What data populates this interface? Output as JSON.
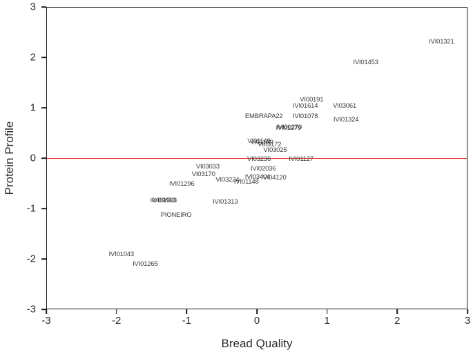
{
  "figure": {
    "background": "#ffffff",
    "frame_color": "#1a1a1a",
    "text_color": "#2b2b2b"
  },
  "chart_data": {
    "type": "scatter",
    "title": "",
    "xlabel": "Bread Quality",
    "ylabel": "Protein Profile",
    "xlim": [
      -3,
      3
    ],
    "ylim": [
      -3,
      3
    ],
    "xticks": [
      "-3",
      "-2",
      "-1",
      "0",
      "1",
      "2",
      "3"
    ],
    "yticks": [
      "3",
      "2",
      "1",
      "0",
      "-1",
      "-2",
      "-3"
    ],
    "grid": false,
    "legend": "none",
    "marker_style": "text-label",
    "point_label_color": "#3a3a3a",
    "reference_line": {
      "axis": "y",
      "value": 0,
      "color": "#e8392b"
    },
    "points": [
      {
        "label": "IVI01321",
        "x": 2.62,
        "y": 2.32
      },
      {
        "label": "IVI01453",
        "x": 1.54,
        "y": 1.9
      },
      {
        "label": "VI00191",
        "x": 0.77,
        "y": 1.17
      },
      {
        "label": "IVI01614",
        "x": 0.68,
        "y": 1.04
      },
      {
        "label": "VI03061",
        "x": 1.24,
        "y": 1.04
      },
      {
        "label": "EMBRAPA22",
        "x": 0.09,
        "y": 0.84
      },
      {
        "label": "IVI01078",
        "x": 0.68,
        "y": 0.84
      },
      {
        "label": "IVI01324",
        "x": 1.26,
        "y": 0.77
      },
      {
        "label": "IVI00270",
        "x": 0.45,
        "y": 0.61
      },
      {
        "label": "IVI01279",
        "x": 0.44,
        "y": 0.6
      },
      {
        "label": "VI01149",
        "x": 0.02,
        "y": 0.34
      },
      {
        "label": "VI01169",
        "x": 0.06,
        "y": 0.32
      },
      {
        "label": "VI03172",
        "x": 0.17,
        "y": 0.28
      },
      {
        "label": "VI03025",
        "x": 0.25,
        "y": 0.17
      },
      {
        "label": "VI03236",
        "x": 0.02,
        "y": -0.01
      },
      {
        "label": "IVI01127",
        "x": 0.62,
        "y": -0.01
      },
      {
        "label": "VI03033",
        "x": -0.71,
        "y": -0.17
      },
      {
        "label": "IVI02036",
        "x": 0.08,
        "y": -0.21
      },
      {
        "label": "VI03170",
        "x": -0.77,
        "y": -0.31
      },
      {
        "label": "IVI03404",
        "x": 0.0,
        "y": -0.37
      },
      {
        "label": "IVI04120",
        "x": 0.23,
        "y": -0.38
      },
      {
        "label": "VI03224",
        "x": -0.43,
        "y": -0.42
      },
      {
        "label": "IVI01148",
        "x": -0.16,
        "y": -0.47
      },
      {
        "label": "IVI01296",
        "x": -1.08,
        "y": -0.51
      },
      {
        "label": "IVI09653",
        "x": -1.35,
        "y": -0.84
      },
      {
        "label": "IVI01963",
        "x": -1.33,
        "y": -0.84
      },
      {
        "label": "IVI01313",
        "x": -0.46,
        "y": -0.86
      },
      {
        "label": "PIONEIRO",
        "x": -1.16,
        "y": -1.12
      },
      {
        "label": "IVI01043",
        "x": -1.94,
        "y": -1.9
      },
      {
        "label": "IVI01265",
        "x": -1.6,
        "y": -2.09
      }
    ]
  }
}
